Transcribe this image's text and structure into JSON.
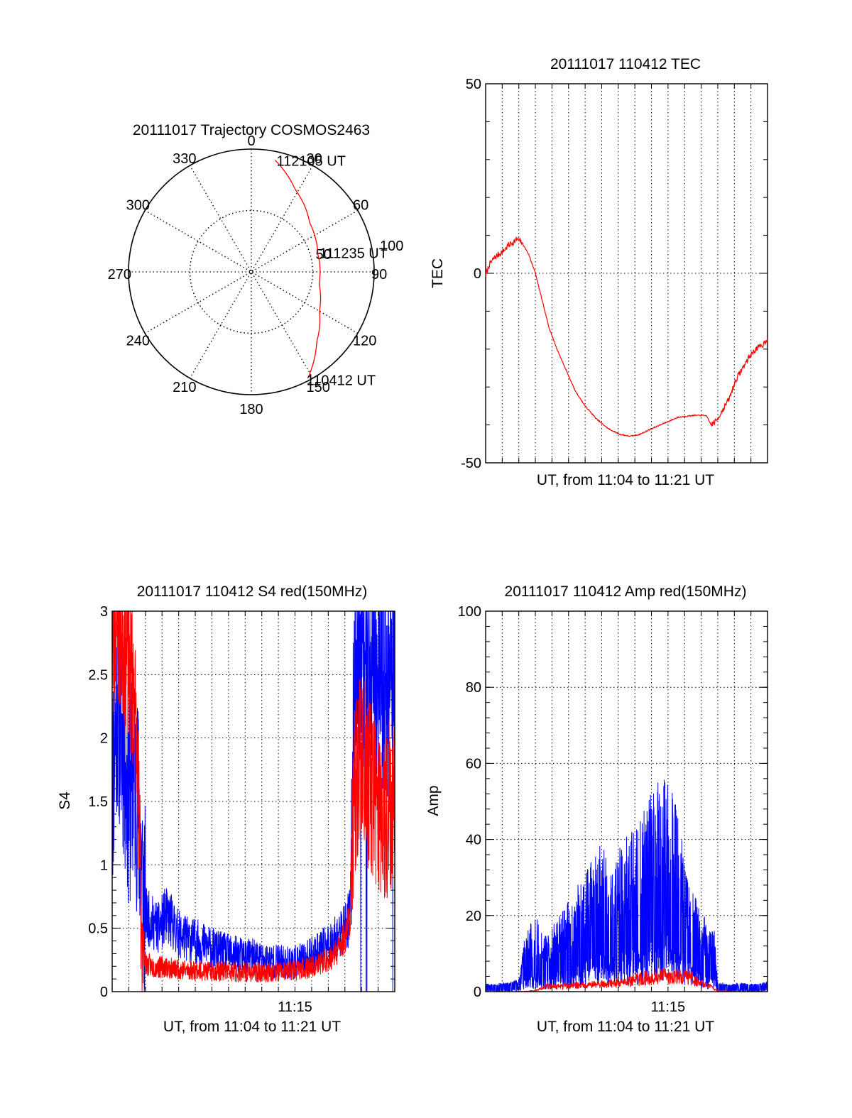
{
  "colors": {
    "red_series": "#ff0000",
    "blue_series": "#0000ff",
    "axes": "#000000",
    "grid": "#000000",
    "background": "#ffffff"
  },
  "chart_data": [
    {
      "id": "trajectory",
      "type": "polar",
      "title": "20111017 Trajectory COSMOS2463",
      "azimuth_labels": [
        "0",
        "30",
        "60",
        "90",
        "120",
        "150",
        "180",
        "210",
        "240",
        "270",
        "300",
        "330"
      ],
      "radial_labels": [
        "50",
        "100"
      ],
      "grid": true,
      "series": [
        {
          "color": "#ff0000",
          "points": [
            {
              "az": 12,
              "r": 93
            },
            {
              "az": 28,
              "r": 76
            },
            {
              "az": 50,
              "r": 62
            },
            {
              "az": 75,
              "r": 56
            },
            {
              "az": 100,
              "r": 56
            },
            {
              "az": 120,
              "r": 64
            },
            {
              "az": 137,
              "r": 78
            },
            {
              "az": 152,
              "r": 98
            }
          ]
        }
      ],
      "annotations": [
        {
          "text": "112105 UT",
          "az": 12,
          "r": 93
        },
        {
          "text": "111235 UT",
          "az": 82,
          "r": 56
        },
        {
          "text": "110412 UT",
          "az": 152,
          "r": 98
        }
      ]
    },
    {
      "id": "tec",
      "type": "line",
      "title": "20111017 110412 TEC",
      "xlabel": "UT, from 11:04 to 11:21 UT",
      "ylabel": "TEC",
      "xlim": [
        0,
        17
      ],
      "ylim": [
        -50,
        50
      ],
      "yticks": [
        "50",
        "0",
        "-50"
      ],
      "grid": true,
      "series": [
        {
          "color": "#ff0000",
          "x": [
            0.0,
            0.2,
            0.5,
            0.8,
            1.1,
            1.4,
            1.6,
            1.9,
            2.2,
            2.6,
            3.0,
            3.4,
            3.8,
            4.3,
            4.8,
            5.4,
            6.0,
            6.7,
            7.4,
            8.1,
            8.7,
            9.3,
            10.0,
            10.8,
            11.6,
            12.5,
            13.3,
            13.6,
            13.9,
            14.3,
            14.7,
            15.1,
            15.5,
            15.9,
            16.3,
            16.7,
            17.0
          ],
          "y": [
            -0.5,
            2,
            4,
            5,
            6,
            7.5,
            8,
            9,
            8,
            5,
            0,
            -7,
            -14,
            -20,
            -25,
            -31,
            -35,
            -38.5,
            -41,
            -42.5,
            -43,
            -42.5,
            -41,
            -39.5,
            -38,
            -37.5,
            -37.5,
            -40,
            -39,
            -36,
            -33,
            -28,
            -25,
            -22,
            -20,
            -19,
            -17
          ]
        }
      ]
    },
    {
      "id": "s4",
      "type": "line",
      "title": "20111017 110412 S4 red(150MHz)",
      "xlabel": "UT, from 11:04 to 11:21 UT",
      "ylabel": "S4",
      "xlim": [
        0,
        17
      ],
      "ylim": [
        0,
        3
      ],
      "yticks": [
        "0",
        "0.5",
        "1",
        "1.5",
        "2",
        "2.5",
        "3"
      ],
      "xticks": [
        {
          "at": 11,
          "label": "11:15"
        }
      ],
      "grid": true,
      "series": [
        {
          "color": "#0000ff",
          "x": [
            0.0,
            0.3,
            0.7,
            1.0,
            1.3,
            1.6,
            1.8,
            2.0,
            2.4,
            2.8,
            3.2,
            3.6,
            4.0,
            4.5,
            5.0,
            5.6,
            6.2,
            6.8,
            7.4,
            8.0,
            8.6,
            9.2,
            9.8,
            10.4,
            11.0,
            11.6,
            12.2,
            12.8,
            13.3,
            13.7,
            14.0,
            14.3,
            14.6,
            15.0,
            15.5,
            16.0,
            16.5,
            17.0
          ],
          "y": [
            1.6,
            2.3,
            1.9,
            1.5,
            1.7,
            1.4,
            0.9,
            0.6,
            0.55,
            0.5,
            0.6,
            0.55,
            0.45,
            0.42,
            0.4,
            0.37,
            0.33,
            0.31,
            0.29,
            0.28,
            0.27,
            0.25,
            0.24,
            0.23,
            0.23,
            0.25,
            0.3,
            0.35,
            0.4,
            0.45,
            0.5,
            0.6,
            2.5,
            2.7,
            2.5,
            2.6,
            2.4,
            2.5
          ]
        },
        {
          "color": "#ff0000",
          "x": [
            0.0,
            0.3,
            0.7,
            1.0,
            1.3,
            1.6,
            1.8,
            2.0,
            2.4,
            2.8,
            3.2,
            3.6,
            4.0,
            4.5,
            5.0,
            5.6,
            6.2,
            6.8,
            7.4,
            8.0,
            8.6,
            9.2,
            9.8,
            10.4,
            11.0,
            11.6,
            12.2,
            12.8,
            13.3,
            13.7,
            14.0,
            14.3,
            14.6,
            15.0,
            15.5,
            16.0,
            16.5,
            17.0
          ],
          "y": [
            2.7,
            2.9,
            2.8,
            2.6,
            2.4,
            1.3,
            0.5,
            0.22,
            0.2,
            0.19,
            0.2,
            0.18,
            0.18,
            0.17,
            0.17,
            0.16,
            0.16,
            0.16,
            0.15,
            0.15,
            0.15,
            0.15,
            0.16,
            0.16,
            0.17,
            0.18,
            0.2,
            0.24,
            0.28,
            0.35,
            0.45,
            0.6,
            1.6,
            1.9,
            1.6,
            1.5,
            1.4,
            1.6
          ]
        }
      ]
    },
    {
      "id": "amp",
      "type": "line",
      "title": "20111017 110412 Amp red(150MHz)",
      "xlabel": "UT, from 11:04 to 11:21 UT",
      "ylabel": "Amp",
      "xlim": [
        0,
        17
      ],
      "ylim": [
        0,
        100
      ],
      "yticks": [
        "0",
        "20",
        "40",
        "60",
        "80",
        "100"
      ],
      "xticks": [
        {
          "at": 11,
          "label": "11:15"
        }
      ],
      "grid": true,
      "series": [
        {
          "color": "#0000ff",
          "x": [
            0.0,
            0.5,
            1.0,
            1.5,
            2.0,
            2.3,
            2.6,
            3.0,
            3.4,
            3.8,
            4.2,
            4.6,
            5.0,
            5.5,
            6.0,
            6.5,
            7.0,
            7.5,
            8.0,
            8.5,
            9.0,
            9.5,
            10.0,
            10.5,
            11.0,
            11.5,
            12.0,
            12.5,
            13.0,
            13.5,
            13.8,
            14.0,
            14.5,
            15.0,
            15.5,
            16.0,
            16.5,
            17.0
          ],
          "y": [
            1,
            1,
            1.2,
            1.5,
            2,
            10,
            13,
            15,
            12,
            11,
            14,
            16,
            18,
            21,
            24,
            27,
            30,
            25,
            29,
            31,
            33,
            36,
            42,
            45,
            43,
            37,
            27,
            20,
            16,
            13,
            12,
            1.5,
            1,
            1,
            1.2,
            1,
            1,
            1.5
          ]
        },
        {
          "color": "#ff0000",
          "x": [
            0.0,
            1.0,
            2.0,
            3.0,
            3.4,
            3.8,
            4.2,
            5.0,
            6.0,
            7.0,
            8.0,
            8.5,
            9.0,
            9.5,
            10.0,
            10.5,
            11.0,
            11.5,
            12.0,
            12.5,
            13.0,
            13.5,
            14.0,
            15.0,
            16.0,
            17.0
          ],
          "y": [
            0,
            0,
            0,
            0.3,
            1,
            1.8,
            1.5,
            1.7,
            2,
            2.2,
            2.5,
            3,
            3.5,
            3.8,
            4.2,
            4.6,
            4.5,
            4.3,
            4.6,
            3.8,
            2.5,
            1.5,
            0.3,
            0,
            0,
            0
          ]
        }
      ]
    }
  ]
}
